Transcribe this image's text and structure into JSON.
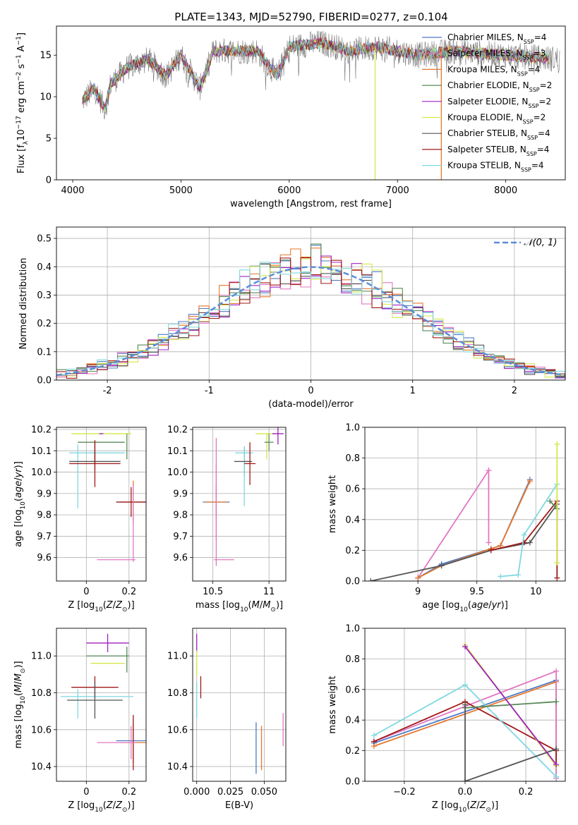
{
  "figure": {
    "title": "PLATE=1343, MJD=52790, FIBERID=0277, z=0.104"
  },
  "chart_data": [
    {
      "id": "spectrum",
      "type": "line",
      "xlabel": "wavelength [Angstrom, rest frame]",
      "ylabel": "Flux [f",
      "ylabel_full": "Flux [fλ10⁻¹⁷ erg cm⁻² s⁻¹ A⁻¹]",
      "xlim": [
        3850,
        8550
      ],
      "ylim": [
        0,
        18.5
      ],
      "xticks": [
        4000,
        5000,
        6000,
        7000,
        8000
      ],
      "yticks": [
        0,
        5,
        10,
        15
      ],
      "grid": false,
      "legend_position": "top-right",
      "series": [
        {
          "name": "Chabrier MILES, N_SSP=4",
          "color": "#4e79c4"
        },
        {
          "name": "Salpeter MILES, N_SSP=3",
          "color": "#e377c2"
        },
        {
          "name": "Kroupa MILES, N_SSP=4",
          "color": "#e6772e"
        },
        {
          "name": "Chabrier ELODIE, N_SSP=2",
          "color": "#5a8a5a"
        },
        {
          "name": "Salpeter ELODIE, N_SSP=2",
          "color": "#a020c0"
        },
        {
          "name": "Kroupa ELODIE, N_SSP=2",
          "color": "#d4e84a"
        },
        {
          "name": "Chabrier STELIB, N_SSP=4",
          "color": "#555555"
        },
        {
          "name": "Salpeter STELIB, N_SSP=4",
          "color": "#a01818"
        },
        {
          "name": "Kroupa STELIB, N_SSP=4",
          "color": "#7fd8e0"
        }
      ],
      "legend": [
        {
          "label": "Chabrier MILES, N",
          "sub": "SSP",
          "suffix": "=4",
          "color": "#4e79c4"
        },
        {
          "label": "Salpeter MILES, N",
          "sub": "SSP",
          "suffix": "=3",
          "color": "#e377c2"
        },
        {
          "label": "Kroupa MILES, N",
          "sub": "SSP",
          "suffix": "=4",
          "color": "#e6772e"
        },
        {
          "label": "Chabrier ELODIE, N",
          "sub": "SSP",
          "suffix": "=2",
          "color": "#5a8a5a"
        },
        {
          "label": "Salpeter ELODIE, N",
          "sub": "SSP",
          "suffix": "=2",
          "color": "#a020c0"
        },
        {
          "label": "Kroupa ELODIE, N",
          "sub": "SSP",
          "suffix": "=2",
          "color": "#d4e84a"
        },
        {
          "label": "Chabrier STELIB, N",
          "sub": "SSP",
          "suffix": "=4",
          "color": "#555555"
        },
        {
          "label": "Salpeter STELIB, N",
          "sub": "SSP",
          "suffix": "=4",
          "color": "#a01818"
        },
        {
          "label": "Kroupa STELIB, N",
          "sub": "SSP",
          "suffix": "=4",
          "color": "#7fd8e0"
        }
      ],
      "spectrum_profile": {
        "x": [
          4090,
          4200,
          4300,
          4350,
          4500,
          4700,
          4861,
          5000,
          5175,
          5300,
          5500,
          5700,
          5890,
          6000,
          6300,
          6563,
          6800,
          7000,
          7200,
          7500,
          8000,
          8500
        ],
        "y": [
          9.5,
          11,
          8.5,
          11.5,
          13.5,
          14.5,
          12.5,
          15,
          11,
          15.5,
          15.5,
          15.5,
          12.5,
          16,
          16.5,
          15.5,
          16,
          15.5,
          15,
          15.5,
          15,
          14.5
        ]
      },
      "spikes": [
        {
          "x": 6793,
          "color": "#d4e84a"
        },
        {
          "x": 7405,
          "color": "#e6772e"
        }
      ]
    },
    {
      "id": "residuals",
      "type": "bar",
      "xlabel": "(data-model)/error",
      "ylabel": "Normed distribution",
      "xlim": [
        -2.5,
        2.5
      ],
      "ylim": [
        0,
        0.54
      ],
      "xticks": [
        -2,
        -1,
        0,
        1,
        2
      ],
      "yticks": [
        0.0,
        0.1,
        0.2,
        0.3,
        0.4,
        0.5
      ],
      "grid": true,
      "legend_position": "top-right",
      "reference": {
        "name": "𝒩(0, 1)",
        "color": "#5b8dd9",
        "style": "dashed"
      },
      "bin_width": 0.1,
      "series_colors": [
        "#4e79c4",
        "#e377c2",
        "#e6772e",
        "#5a8a5a",
        "#a020c0",
        "#d4e84a",
        "#555555",
        "#a01818",
        "#7fd8e0"
      ],
      "series_jitter": [
        0.03,
        -0.02,
        0.04,
        -0.03,
        0.05,
        0.06,
        0.02,
        -0.04,
        0.03
      ]
    },
    {
      "id": "age-vs-Z",
      "type": "scatter",
      "xlabel": "Z [log",
      "ylabel": "age [log",
      "xlim": [
        -0.14,
        0.28
      ],
      "ylim": [
        9.49,
        10.21
      ],
      "xticks": [
        0.0,
        0.2
      ],
      "yticks": [
        9.6,
        9.7,
        9.8,
        9.9,
        10.0,
        10.1,
        10.2
      ],
      "grid": true,
      "points": [
        {
          "x": 0.22,
          "y": 9.86,
          "xerr": 0.08,
          "yerr": 0.08,
          "color": "#4e79c4"
        },
        {
          "x": 0.22,
          "y": 9.86,
          "xerr": 0.06,
          "yerr": 0.1,
          "color": "#e6772e"
        },
        {
          "x": 0.21,
          "y": 9.86,
          "xerr": 0.07,
          "yerr": 0.07,
          "color": "#a01818"
        },
        {
          "x": 0.22,
          "y": 9.76,
          "xerr": 0.0,
          "yerr": 0.18,
          "color": "#e377c2"
        },
        {
          "x": 0.14,
          "y": 9.59,
          "xerr": 0.09,
          "yerr": 0.0,
          "color": "#e377c2"
        },
        {
          "x": 0.2,
          "y": 10.18,
          "xerr": 0.0,
          "yerr": 0.0,
          "color": "#d4e84a"
        },
        {
          "x": 0.07,
          "y": 10.18,
          "xerr": 0.14,
          "yerr": 0.0,
          "color": "#d4e84a"
        },
        {
          "x": 0.07,
          "y": 10.18,
          "xerr": 0.0,
          "yerr": 0.0,
          "color": "#a020c0"
        },
        {
          "x": 0.07,
          "y": 10.14,
          "xerr": 0.11,
          "yerr": 0.0,
          "color": "#5a8a5a"
        },
        {
          "x": 0.19,
          "y": 10.12,
          "xerr": 0.0,
          "yerr": 0.06,
          "color": "#5a8a5a"
        },
        {
          "x": 0.04,
          "y": 10.09,
          "xerr": 0.0,
          "yerr": 0.05,
          "color": "#555555"
        },
        {
          "x": 0.05,
          "y": 10.09,
          "xerr": 0.13,
          "yerr": 0.0,
          "color": "#7fd8e0"
        },
        {
          "x": -0.04,
          "y": 9.98,
          "xerr": 0.0,
          "yerr": 0.15,
          "color": "#7fd8e0"
        },
        {
          "x": 0.04,
          "y": 10.05,
          "xerr": 0.12,
          "yerr": 0.04,
          "color": "#555555"
        },
        {
          "x": 0.04,
          "y": 10.04,
          "xerr": 0.12,
          "yerr": 0.11,
          "color": "#a01818"
        }
      ]
    },
    {
      "id": "age-vs-mass",
      "type": "scatter",
      "xlabel": "mass [log",
      "xlim": [
        10.32,
        11.15
      ],
      "ylim": [
        9.49,
        10.21
      ],
      "xticks": [
        10.5,
        11.0
      ],
      "yticks": [
        9.6,
        9.7,
        9.8,
        9.9,
        10.0,
        10.1,
        10.2
      ],
      "grid": true,
      "points": [
        {
          "x": 10.53,
          "y": 9.86,
          "xerr": 0.12,
          "yerr": 0.08,
          "color": "#4e79c4"
        },
        {
          "x": 10.53,
          "y": 9.86,
          "xerr": 0.1,
          "yerr": 0.18,
          "color": "#e6772e"
        },
        {
          "x": 10.53,
          "y": 9.86,
          "xerr": 0.0,
          "yerr": 0.3,
          "color": "#e377c2"
        },
        {
          "x": 10.6,
          "y": 9.59,
          "xerr": 0.09,
          "yerr": 0.0,
          "color": "#e377c2"
        },
        {
          "x": 10.98,
          "y": 10.18,
          "xerr": 0.1,
          "yerr": 0.0,
          "color": "#d4e84a"
        },
        {
          "x": 10.98,
          "y": 10.12,
          "xerr": 0.0,
          "yerr": 0.06,
          "color": "#d4e84a"
        },
        {
          "x": 11.08,
          "y": 10.18,
          "xerr": 0.05,
          "yerr": 0.05,
          "color": "#a020c0"
        },
        {
          "x": 11.0,
          "y": 10.14,
          "xerr": 0.04,
          "yerr": 0.04,
          "color": "#5a8a5a"
        },
        {
          "x": 10.78,
          "y": 10.05,
          "xerr": 0.0,
          "yerr": 0.07,
          "color": "#555555"
        },
        {
          "x": 10.78,
          "y": 10.09,
          "xerr": 0.08,
          "yerr": 0.0,
          "color": "#7fd8e0"
        },
        {
          "x": 10.78,
          "y": 9.98,
          "xerr": 0.0,
          "yerr": 0.14,
          "color": "#7fd8e0"
        },
        {
          "x": 10.77,
          "y": 10.05,
          "xerr": 0.08,
          "yerr": 0.0,
          "color": "#555555"
        },
        {
          "x": 10.83,
          "y": 10.04,
          "xerr": 0.05,
          "yerr": 0.1,
          "color": "#a01818"
        }
      ]
    },
    {
      "id": "weight-vs-age",
      "type": "line",
      "xlabel": "age [log",
      "ylabel": "mass weight",
      "xlim": [
        8.55,
        10.25
      ],
      "ylim": [
        0,
        1.0
      ],
      "xticks": [
        9.0,
        9.5,
        10.0
      ],
      "yticks": [
        0.0,
        0.2,
        0.4,
        0.6,
        0.8,
        1.0
      ],
      "grid": true,
      "series": [
        {
          "color": "#e377c2",
          "points": [
            [
              9.0,
              0.02
            ],
            [
              9.6,
              0.72
            ],
            [
              9.6,
              0.25
            ]
          ]
        },
        {
          "color": "#4e79c4",
          "points": [
            [
              9.0,
              0.02
            ],
            [
              9.2,
              0.11
            ],
            [
              9.62,
              0.21
            ],
            [
              9.7,
              0.23
            ],
            [
              9.95,
              0.66
            ]
          ]
        },
        {
          "color": "#e6772e",
          "points": [
            [
              9.0,
              0.02
            ],
            [
              9.2,
              0.1
            ],
            [
              9.62,
              0.21
            ],
            [
              9.7,
              0.23
            ],
            [
              9.95,
              0.65
            ]
          ]
        },
        {
          "color": "#555555",
          "points": [
            [
              8.6,
              0.0
            ],
            [
              9.2,
              0.1
            ],
            [
              9.62,
              0.2
            ],
            [
              9.95,
              0.25
            ],
            [
              10.18,
              0.5
            ]
          ]
        },
        {
          "color": "#a01818",
          "points": [
            [
              9.62,
              0.2
            ],
            [
              9.9,
              0.25
            ],
            [
              10.18,
              0.52
            ],
            [
              10.18,
              0.02
            ]
          ]
        },
        {
          "color": "#5a8a5a",
          "points": [
            [
              10.12,
              0.52
            ],
            [
              10.18,
              0.47
            ]
          ]
        },
        {
          "color": "#7fd8e0",
          "points": [
            [
              9.7,
              0.03
            ],
            [
              9.85,
              0.04
            ],
            [
              9.9,
              0.3
            ],
            [
              10.18,
              0.63
            ]
          ]
        },
        {
          "color": "#d4e84a",
          "points": [
            [
              10.18,
              0.89
            ],
            [
              10.18,
              0.12
            ]
          ]
        }
      ]
    },
    {
      "id": "mass-vs-Z",
      "type": "scatter",
      "xlabel": "Z [log",
      "ylabel": "mass [log",
      "xlim": [
        -0.14,
        0.28
      ],
      "ylim": [
        10.32,
        11.15
      ],
      "xticks": [
        0.0,
        0.2
      ],
      "yticks": [
        10.4,
        10.6,
        10.8,
        11.0
      ],
      "grid": true,
      "points": [
        {
          "x": 0.22,
          "y": 10.54,
          "xerr": 0.08,
          "yerr": 0.12,
          "color": "#4e79c4"
        },
        {
          "x": 0.22,
          "y": 10.53,
          "xerr": 0.06,
          "yerr": 0.1,
          "color": "#e6772e"
        },
        {
          "x": 0.22,
          "y": 10.53,
          "xerr": 0.0,
          "yerr": 0.15,
          "color": "#a01818"
        },
        {
          "x": 0.14,
          "y": 10.53,
          "xerr": 0.09,
          "yerr": 0.0,
          "color": "#e377c2"
        },
        {
          "x": 0.21,
          "y": 10.53,
          "xerr": 0.0,
          "yerr": 0.09,
          "color": "#e377c2"
        },
        {
          "x": 0.1,
          "y": 11.07,
          "xerr": 0.1,
          "yerr": 0.05,
          "color": "#a020c0"
        },
        {
          "x": 0.1,
          "y": 10.96,
          "xerr": 0.08,
          "yerr": 0.0,
          "color": "#d4e84a"
        },
        {
          "x": 0.1,
          "y": 11.0,
          "xerr": 0.1,
          "yerr": 0.0,
          "color": "#5a8a5a"
        },
        {
          "x": 0.19,
          "y": 10.98,
          "xerr": 0.0,
          "yerr": 0.07,
          "color": "#5a8a5a"
        },
        {
          "x": 0.04,
          "y": 10.83,
          "xerr": 0.11,
          "yerr": 0.06,
          "color": "#a01818"
        },
        {
          "x": 0.05,
          "y": 10.78,
          "xerr": 0.17,
          "yerr": 0.0,
          "color": "#7fd8e0"
        },
        {
          "x": -0.04,
          "y": 10.74,
          "xerr": 0.0,
          "yerr": 0.08,
          "color": "#7fd8e0"
        },
        {
          "x": 0.04,
          "y": 10.76,
          "xerr": 0.13,
          "yerr": 0.1,
          "color": "#555555"
        }
      ]
    },
    {
      "id": "mass-vs-EBV",
      "type": "scatter",
      "xlabel": "E(B-V)",
      "xlim": [
        -0.003,
        0.066
      ],
      "ylim": [
        10.32,
        11.15
      ],
      "xticks": [
        0.0,
        0.025,
        0.05
      ],
      "xticklabels": [
        "0.000",
        "0.025",
        "0.050"
      ],
      "yticks": [
        10.4,
        10.6,
        10.8,
        11.0
      ],
      "grid": true,
      "points": [
        {
          "x": 0.0,
          "y": 11.07,
          "xerr": 0.0,
          "yerr": 0.05,
          "color": "#a020c0"
        },
        {
          "x": 0.0,
          "y": 10.96,
          "xerr": 0.0,
          "yerr": 0.07,
          "color": "#d4e84a"
        },
        {
          "x": 0.0,
          "y": 10.76,
          "xerr": 0.0,
          "yerr": 0.1,
          "color": "#7fd8e0"
        },
        {
          "x": 0.003,
          "y": 10.83,
          "xerr": 0.0,
          "yerr": 0.06,
          "color": "#a01818"
        },
        {
          "x": 0.044,
          "y": 10.5,
          "xerr": 0.0,
          "yerr": 0.14,
          "color": "#4e79c4"
        },
        {
          "x": 0.048,
          "y": 10.5,
          "xerr": 0.0,
          "yerr": 0.12,
          "color": "#e6772e"
        },
        {
          "x": 0.064,
          "y": 10.6,
          "xerr": 0.0,
          "yerr": 0.09,
          "color": "#e377c2"
        }
      ]
    },
    {
      "id": "weight-vs-Z",
      "type": "line",
      "xlabel": "Z [log",
      "ylabel": "mass weight",
      "xlim": [
        -0.33,
        0.33
      ],
      "ylim": [
        0,
        1.0
      ],
      "xticks": [
        -0.2,
        0.0,
        0.2
      ],
      "xticklabels": [
        "−0.2",
        "0.0",
        "0.2"
      ],
      "yticks": [
        0.0,
        0.2,
        0.4,
        0.6,
        0.8,
        1.0
      ],
      "grid": true,
      "series": [
        {
          "color": "#4e79c4",
          "points": [
            [
              -0.3,
              0.25
            ],
            [
              0.3,
              0.66
            ],
            [
              0.3,
              0.02
            ]
          ]
        },
        {
          "color": "#e6772e",
          "points": [
            [
              -0.3,
              0.23
            ],
            [
              0.3,
              0.65
            ],
            [
              0.3,
              0.1
            ]
          ]
        },
        {
          "color": "#e377c2",
          "points": [
            [
              -0.3,
              0.26
            ],
            [
              0.3,
              0.72
            ],
            [
              0.3,
              0.02
            ]
          ]
        },
        {
          "color": "#a01818",
          "points": [
            [
              -0.3,
              0.26
            ],
            [
              0.0,
              0.52
            ],
            [
              0.3,
              0.2
            ],
            [
              0.3,
              0.1
            ]
          ]
        },
        {
          "color": "#7fd8e0",
          "points": [
            [
              -0.3,
              0.3
            ],
            [
              0.0,
              0.63
            ],
            [
              0.3,
              0.03
            ]
          ]
        },
        {
          "color": "#d4e84a",
          "points": [
            [
              0.0,
              0.89
            ],
            [
              0.3,
              0.1
            ]
          ]
        },
        {
          "color": "#5a8a5a",
          "points": [
            [
              0.0,
              0.48
            ],
            [
              0.3,
              0.52
            ]
          ]
        },
        {
          "color": "#555555",
          "points": [
            [
              0.0,
              0.5
            ],
            [
              0.0,
              0.0
            ],
            [
              0.3,
              0.21
            ]
          ]
        },
        {
          "color": "#a020c0",
          "points": [
            [
              0.0,
              0.88
            ],
            [
              0.3,
              0.11
            ]
          ]
        }
      ]
    }
  ]
}
